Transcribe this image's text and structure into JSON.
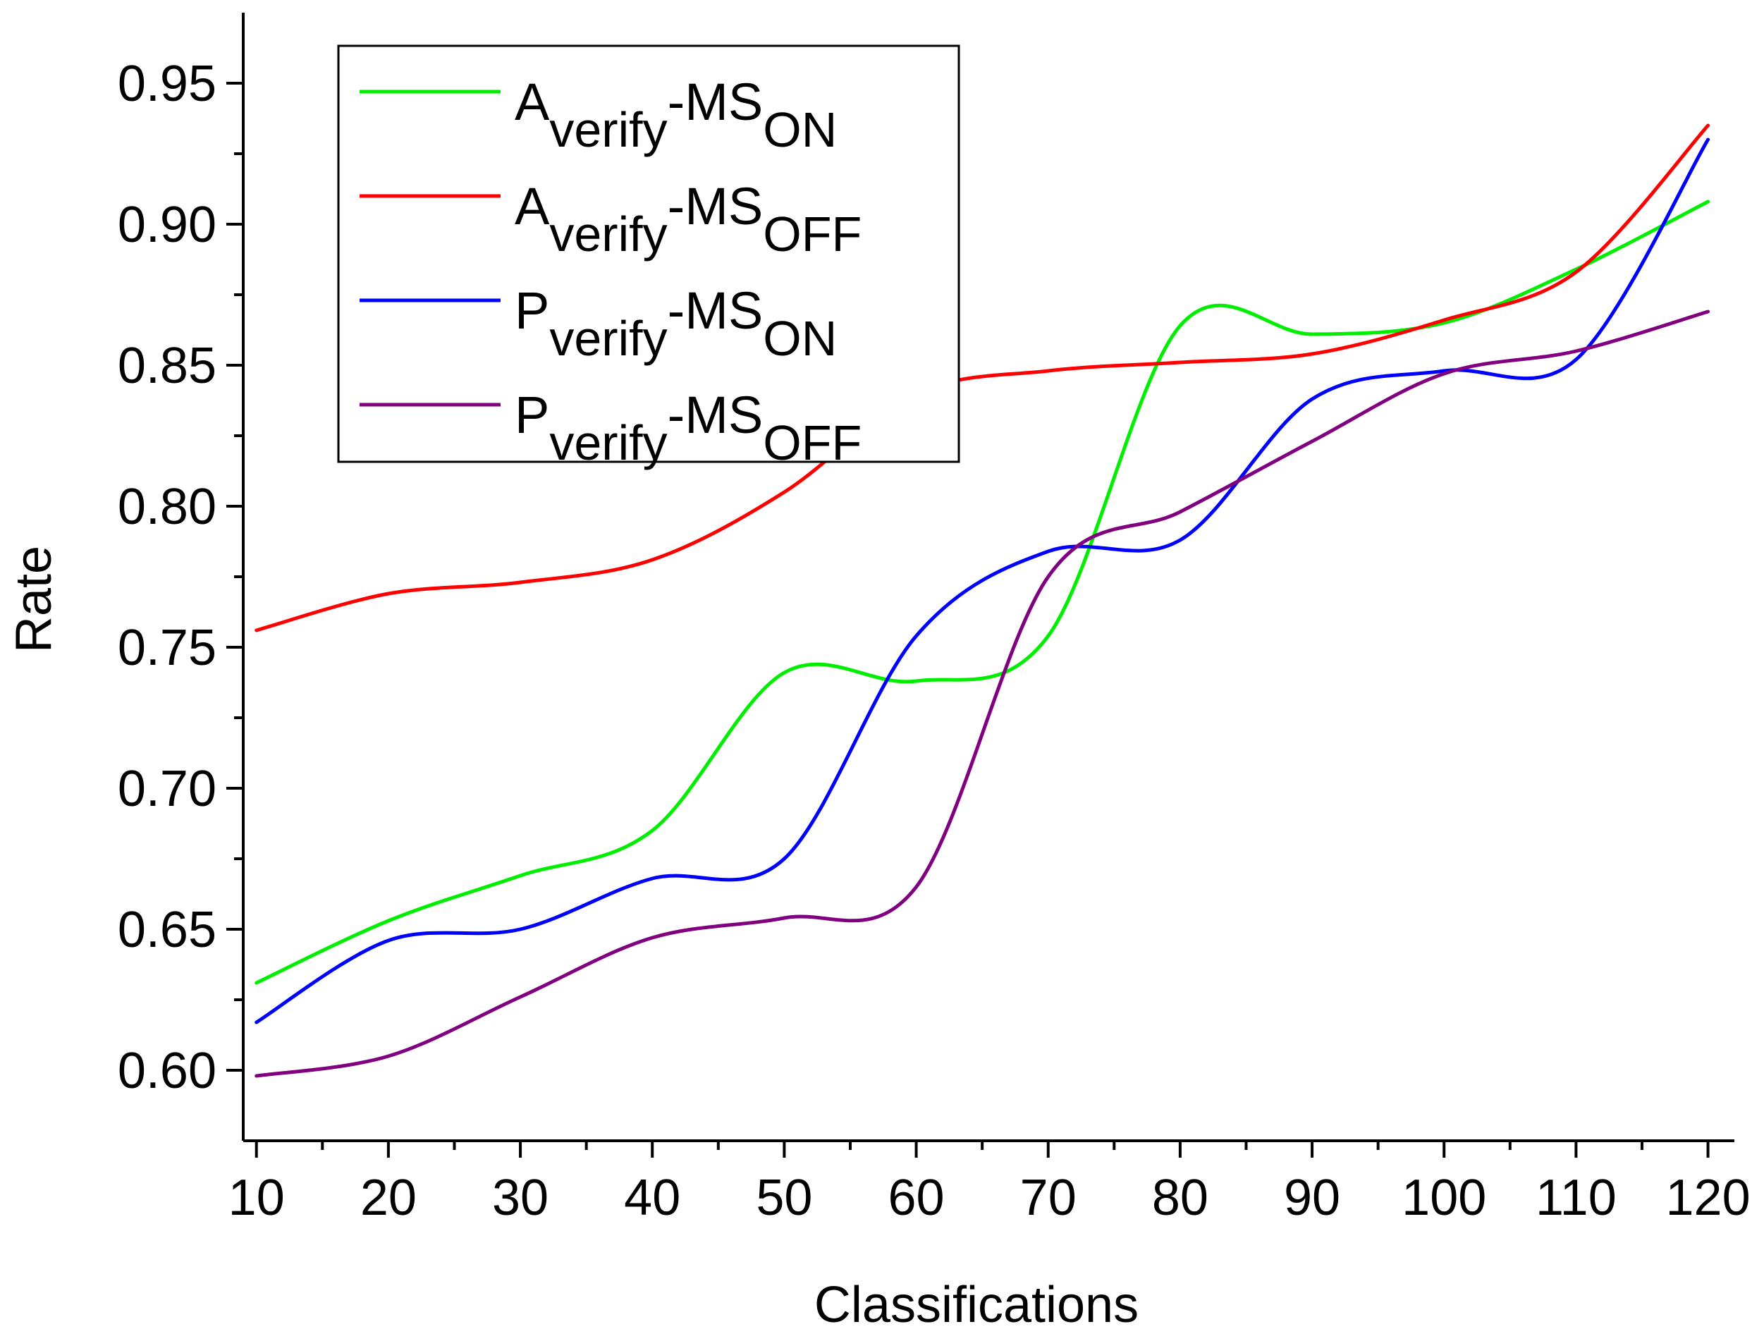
{
  "chart_data": {
    "type": "line",
    "xlabel": "Classifications",
    "ylabel": "Rate",
    "xlim": [
      9,
      122
    ],
    "ylim": [
      0.575,
      0.975
    ],
    "xticks": [
      10,
      20,
      30,
      40,
      50,
      60,
      70,
      80,
      90,
      100,
      110,
      120
    ],
    "xtick_labels": [
      "10",
      "20",
      "30",
      "40",
      "50",
      "60",
      "70",
      "80",
      "90",
      "100",
      "110",
      "120"
    ],
    "yticks": [
      0.6,
      0.65,
      0.7,
      0.75,
      0.8,
      0.85,
      0.9,
      0.95
    ],
    "ytick_labels": [
      "0.60",
      "0.65",
      "0.70",
      "0.75",
      "0.80",
      "0.85",
      "0.90",
      "0.95"
    ],
    "grid": false,
    "legend_position": "top-left",
    "series": [
      {
        "name": "Averify-MSON",
        "legend_main": "A",
        "legend_sub1": "verify",
        "legend_mid": "-MS",
        "legend_sub2": "ON",
        "color": "#00ee00",
        "x": [
          10,
          20,
          30,
          40,
          50,
          60,
          70,
          80,
          90,
          100,
          110,
          120
        ],
        "y": [
          0.631,
          0.653,
          0.669,
          0.685,
          0.741,
          0.738,
          0.754,
          0.864,
          0.861,
          0.865,
          0.884,
          0.908
        ]
      },
      {
        "name": "Averify-MSOFF",
        "legend_main": "A",
        "legend_sub1": "verify",
        "legend_mid": "-MS",
        "legend_sub2": "OFF",
        "color": "#ff0000",
        "x": [
          10,
          20,
          30,
          40,
          50,
          60,
          70,
          80,
          90,
          100,
          110,
          120
        ],
        "y": [
          0.756,
          0.769,
          0.773,
          0.781,
          0.805,
          0.84,
          0.848,
          0.851,
          0.854,
          0.866,
          0.883,
          0.935
        ]
      },
      {
        "name": "Pverify-MSON",
        "legend_main": "P",
        "legend_sub1": "verify",
        "legend_mid": "-MS",
        "legend_sub2": "ON",
        "color": "#0000ff",
        "x": [
          10,
          20,
          30,
          40,
          50,
          60,
          70,
          80,
          90,
          100,
          110,
          120
        ],
        "y": [
          0.617,
          0.646,
          0.65,
          0.668,
          0.675,
          0.754,
          0.784,
          0.788,
          0.838,
          0.848,
          0.852,
          0.93
        ]
      },
      {
        "name": "Pverify-MSOFF",
        "legend_main": "P",
        "legend_sub1": "verify",
        "legend_mid": "-MS",
        "legend_sub2": "OFF",
        "color": "#800080",
        "x": [
          10,
          20,
          30,
          40,
          50,
          60,
          70,
          80,
          90,
          100,
          110,
          120
        ],
        "y": [
          0.598,
          0.605,
          0.626,
          0.647,
          0.654,
          0.665,
          0.775,
          0.798,
          0.823,
          0.847,
          0.855,
          0.869
        ]
      }
    ]
  }
}
